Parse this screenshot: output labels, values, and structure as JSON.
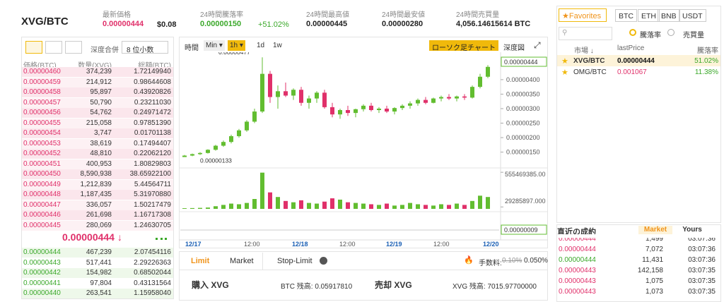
{
  "header": {
    "pair": "XVG/BTC",
    "stats": [
      {
        "label": "最新価格",
        "value": "0.00000444",
        "extra": "$0.08"
      },
      {
        "label": "24時間騰落率",
        "value": "0.00000150",
        "extra": "+51.02%"
      },
      {
        "label": "24時間最高値",
        "value": "0.00000445"
      },
      {
        "label": "24時間最安値",
        "value": "0.00000280"
      },
      {
        "label": "24時間売買量",
        "value": "4,056.14615614 BTC"
      }
    ]
  },
  "orderbook": {
    "depth_label": "深度合併",
    "decimals": "8 位小数",
    "columns": [
      "価格(BTC)",
      "数量(XVG)",
      "総額(BTC)"
    ],
    "asks": [
      [
        "0.00000460",
        "374,239",
        "1.72149940"
      ],
      [
        "0.00000459",
        "214,912",
        "0.98644608"
      ],
      [
        "0.00000458",
        "95,897",
        "0.43920826"
      ],
      [
        "0.00000457",
        "50,790",
        "0.23211030"
      ],
      [
        "0.00000456",
        "54,762",
        "0.24971472"
      ],
      [
        "0.00000455",
        "215,058",
        "0.97851390"
      ],
      [
        "0.00000454",
        "3,747",
        "0.01701138"
      ],
      [
        "0.00000453",
        "38,619",
        "0.17494407"
      ],
      [
        "0.00000452",
        "48,810",
        "0.22062120"
      ],
      [
        "0.00000451",
        "400,953",
        "1.80829803"
      ],
      [
        "0.00000450",
        "8,590,938",
        "38.65922100"
      ],
      [
        "0.00000449",
        "1,212,839",
        "5.44564711"
      ],
      [
        "0.00000448",
        "1,187,435",
        "5.31970880"
      ],
      [
        "0.00000447",
        "336,057",
        "1.50217479"
      ],
      [
        "0.00000446",
        "261,698",
        "1.16717308"
      ],
      [
        "0.00000445",
        "280,069",
        "1.24630705"
      ]
    ],
    "last_price": "0.00000444 ↓",
    "bids": [
      [
        "0.00000444",
        "467,239",
        "2.07454116"
      ],
      [
        "0.00000443",
        "517,441",
        "2.29226363"
      ],
      [
        "0.00000442",
        "154,982",
        "0.68502044"
      ],
      [
        "0.00000441",
        "97,804",
        "0.43131564"
      ],
      [
        "0.00000440",
        "263,541",
        "1.15958040"
      ]
    ]
  },
  "chart": {
    "type": "candlestick",
    "toolbar": [
      "時間",
      "Min ▾",
      "1h ▾",
      "1d",
      "1w"
    ],
    "style_button": "ローソク足チャート",
    "depth_button": "深度図",
    "max_label": "0.00000477",
    "min_label": "0.00000133",
    "current_label": "0.00000444",
    "ylim": [
      1.1e-06,
      4.8e-06
    ],
    "yticks": [
      {
        "value": 4e-06,
        "label": "0.00000400"
      },
      {
        "value": 3.5e-06,
        "label": "0.00000350"
      },
      {
        "value": 3e-06,
        "label": "0.00000300"
      },
      {
        "value": 2.5e-06,
        "label": "0.00000250"
      },
      {
        "value": 2e-06,
        "label": "0.00000200"
      },
      {
        "value": 1.5e-06,
        "label": "0.00000150"
      }
    ],
    "candles": [
      [
        1.33e-06,
        1.4e-06,
        1.33e-06,
        1.38e-06
      ],
      [
        1.38e-06,
        1.45e-06,
        1.36e-06,
        1.43e-06
      ],
      [
        1.43e-06,
        1.5e-06,
        1.4e-06,
        1.47e-06
      ],
      [
        1.47e-06,
        1.6e-06,
        1.45e-06,
        1.58e-06
      ],
      [
        1.58e-06,
        1.75e-06,
        1.55e-06,
        1.72e-06
      ],
      [
        1.72e-06,
        1.9e-06,
        1.68e-06,
        1.85e-06
      ],
      [
        1.85e-06,
        2.1e-06,
        1.8e-06,
        2.05e-06
      ],
      [
        2.05e-06,
        2.3e-06,
        2e-06,
        2.25e-06
      ],
      [
        2.25e-06,
        2.6e-06,
        2.2e-06,
        2.55e-06
      ],
      [
        2.55e-06,
        3e-06,
        2.5e-06,
        2.9e-06
      ],
      [
        2.9e-06,
        4.77e-06,
        2.85e-06,
        4.2e-06
      ],
      [
        4.2e-06,
        4.3e-06,
        3.2e-06,
        3.4e-06
      ],
      [
        3.4e-06,
        3.8e-06,
        3e-06,
        3.6e-06
      ],
      [
        3.6e-06,
        3.9e-06,
        3.4e-06,
        3.45e-06
      ],
      [
        3.45e-06,
        3.7e-06,
        3.3e-06,
        3.65e-06
      ],
      [
        3.65e-06,
        3.75e-06,
        3.1e-06,
        3.2e-06
      ],
      [
        3.2e-06,
        3.45e-06,
        3e-06,
        3.35e-06
      ],
      [
        3.35e-06,
        3.6e-06,
        3.2e-06,
        3.55e-06
      ],
      [
        3.55e-06,
        3.65e-06,
        3e-06,
        3.05e-06
      ],
      [
        3.05e-06,
        3.2e-06,
        2.7e-06,
        2.8e-06
      ],
      [
        2.8e-06,
        3e-06,
        2.65e-06,
        2.95e-06
      ],
      [
        2.95e-06,
        3.1e-06,
        2.75e-06,
        2.85e-06
      ],
      [
        2.85e-06,
        3e-06,
        2.7e-06,
        2.98e-06
      ],
      [
        2.98e-06,
        3.15e-06,
        2.9e-06,
        3.1e-06
      ],
      [
        3.1e-06,
        3.2e-06,
        2.9e-06,
        2.95e-06
      ],
      [
        2.95e-06,
        3.05e-06,
        2.85e-06,
        3e-06
      ],
      [
        3e-06,
        3.1e-06,
        2.85e-06,
        2.9e-06
      ],
      [
        2.9e-06,
        3.05e-06,
        2.8e-06,
        3.02e-06
      ],
      [
        3.02e-06,
        3.15e-06,
        2.95e-06,
        3.1e-06
      ],
      [
        3.1e-06,
        3.25e-06,
        3e-06,
        3.18e-06
      ],
      [
        3.18e-06,
        3.35e-06,
        3.1e-06,
        3.3e-06
      ],
      [
        3.3e-06,
        3.4e-06,
        3.15e-06,
        3.2e-06
      ],
      [
        3.2e-06,
        3.38e-06,
        3.18e-06,
        3.35e-06
      ],
      [
        3.35e-06,
        3.45e-06,
        3.25e-06,
        3.4e-06
      ],
      [
        3.4e-06,
        3.5e-06,
        3.3e-06,
        3.35e-06
      ],
      [
        3.35e-06,
        3.45e-06,
        3.25e-06,
        3.42e-06
      ],
      [
        3.42e-06,
        3.5e-06,
        3.3e-06,
        3.38e-06
      ],
      [
        3.38e-06,
        3.8e-06,
        3.35e-06,
        3.75e-06
      ],
      [
        3.75e-06,
        4.2e-06,
        3.7e-06,
        4.1e-06
      ],
      [
        4.1e-06,
        4.5e-06,
        4.05e-06,
        4.44e-06
      ]
    ],
    "up_color": "#62bd30",
    "down_color": "#e0306a",
    "volume_ylim": [
      0,
      600000000
    ],
    "volume_ticks": [
      {
        "value": 555469385,
        "label": "555469385.00"
      },
      {
        "value": 29285897,
        "label": "29285897.000"
      }
    ],
    "volumes": [
      10000000.0,
      12000000.0,
      15000000.0,
      20000000.0,
      40000000.0,
      60000000.0,
      80000000.0,
      70000000.0,
      90000000.0,
      150000000.0,
      550000000.0,
      250000000.0,
      180000000.0,
      120000000.0,
      100000000.0,
      130000000.0,
      90000000.0,
      80000000.0,
      110000000.0,
      160000000.0,
      140000000.0,
      100000000.0,
      90000000.0,
      80000000.0,
      70000000.0,
      60000000.0,
      80000000.0,
      50000000.0,
      60000000.0,
      90000000.0,
      70000000.0,
      60000000.0,
      50000000.0,
      70000000.0,
      60000000.0,
      80000000.0,
      60000000.0,
      120000000.0,
      200000000.0,
      180000000.0
    ],
    "macd_label": "0.00000009",
    "time_labels": [
      "12/17",
      "12:00",
      "12/18",
      "12:00",
      "12/19",
      "12:00",
      "12/20"
    ]
  },
  "trade_form": {
    "tabs": [
      "Limit",
      "Market",
      "Stop-Limit"
    ],
    "fee_label": "手数料:",
    "fee_old": "0.10%",
    "fee_new": "0.050%",
    "buy_title": "購入 XVG",
    "buy_balance": "BTC 残高: 0.05917810",
    "sell_title": "売却 XVG",
    "sell_balance": "XVG 残高: 7015.97700000"
  },
  "markets": {
    "favorites": "★Favorites",
    "tabs": [
      "BTC",
      "ETH",
      "BNB",
      "USDT"
    ],
    "radios": [
      "騰落率",
      "売買量"
    ],
    "columns": [
      "市場 ↓",
      "lastPrice",
      "騰落率"
    ],
    "rows": [
      {
        "pair": "XVG/BTC",
        "price": "0.00000444",
        "change": "51.02%",
        "color": "#111111"
      },
      {
        "pair": "OMG/BTC",
        "price": "0.001067",
        "change": "11.38%",
        "color": "#e0306a"
      }
    ]
  },
  "trades": {
    "title": "直近の成約",
    "tabs": [
      "Market",
      "Yours"
    ],
    "rows": [
      {
        "price": "0.00000444",
        "qty": "1,499",
        "time": "03:07:36",
        "color": "#e0306a"
      },
      {
        "price": "0.00000444",
        "qty": "7,072",
        "time": "03:07:36",
        "color": "#e0306a"
      },
      {
        "price": "0.00000444",
        "qty": "11,431",
        "time": "03:07:36",
        "color": "#3aa829"
      },
      {
        "price": "0.00000443",
        "qty": "142,158",
        "time": "03:07:35",
        "color": "#e0306a"
      },
      {
        "price": "0.00000443",
        "qty": "1,075",
        "time": "03:07:35",
        "color": "#e0306a"
      },
      {
        "price": "0.00000443",
        "qty": "1,073",
        "time": "03:07:35",
        "color": "#e0306a"
      }
    ]
  }
}
